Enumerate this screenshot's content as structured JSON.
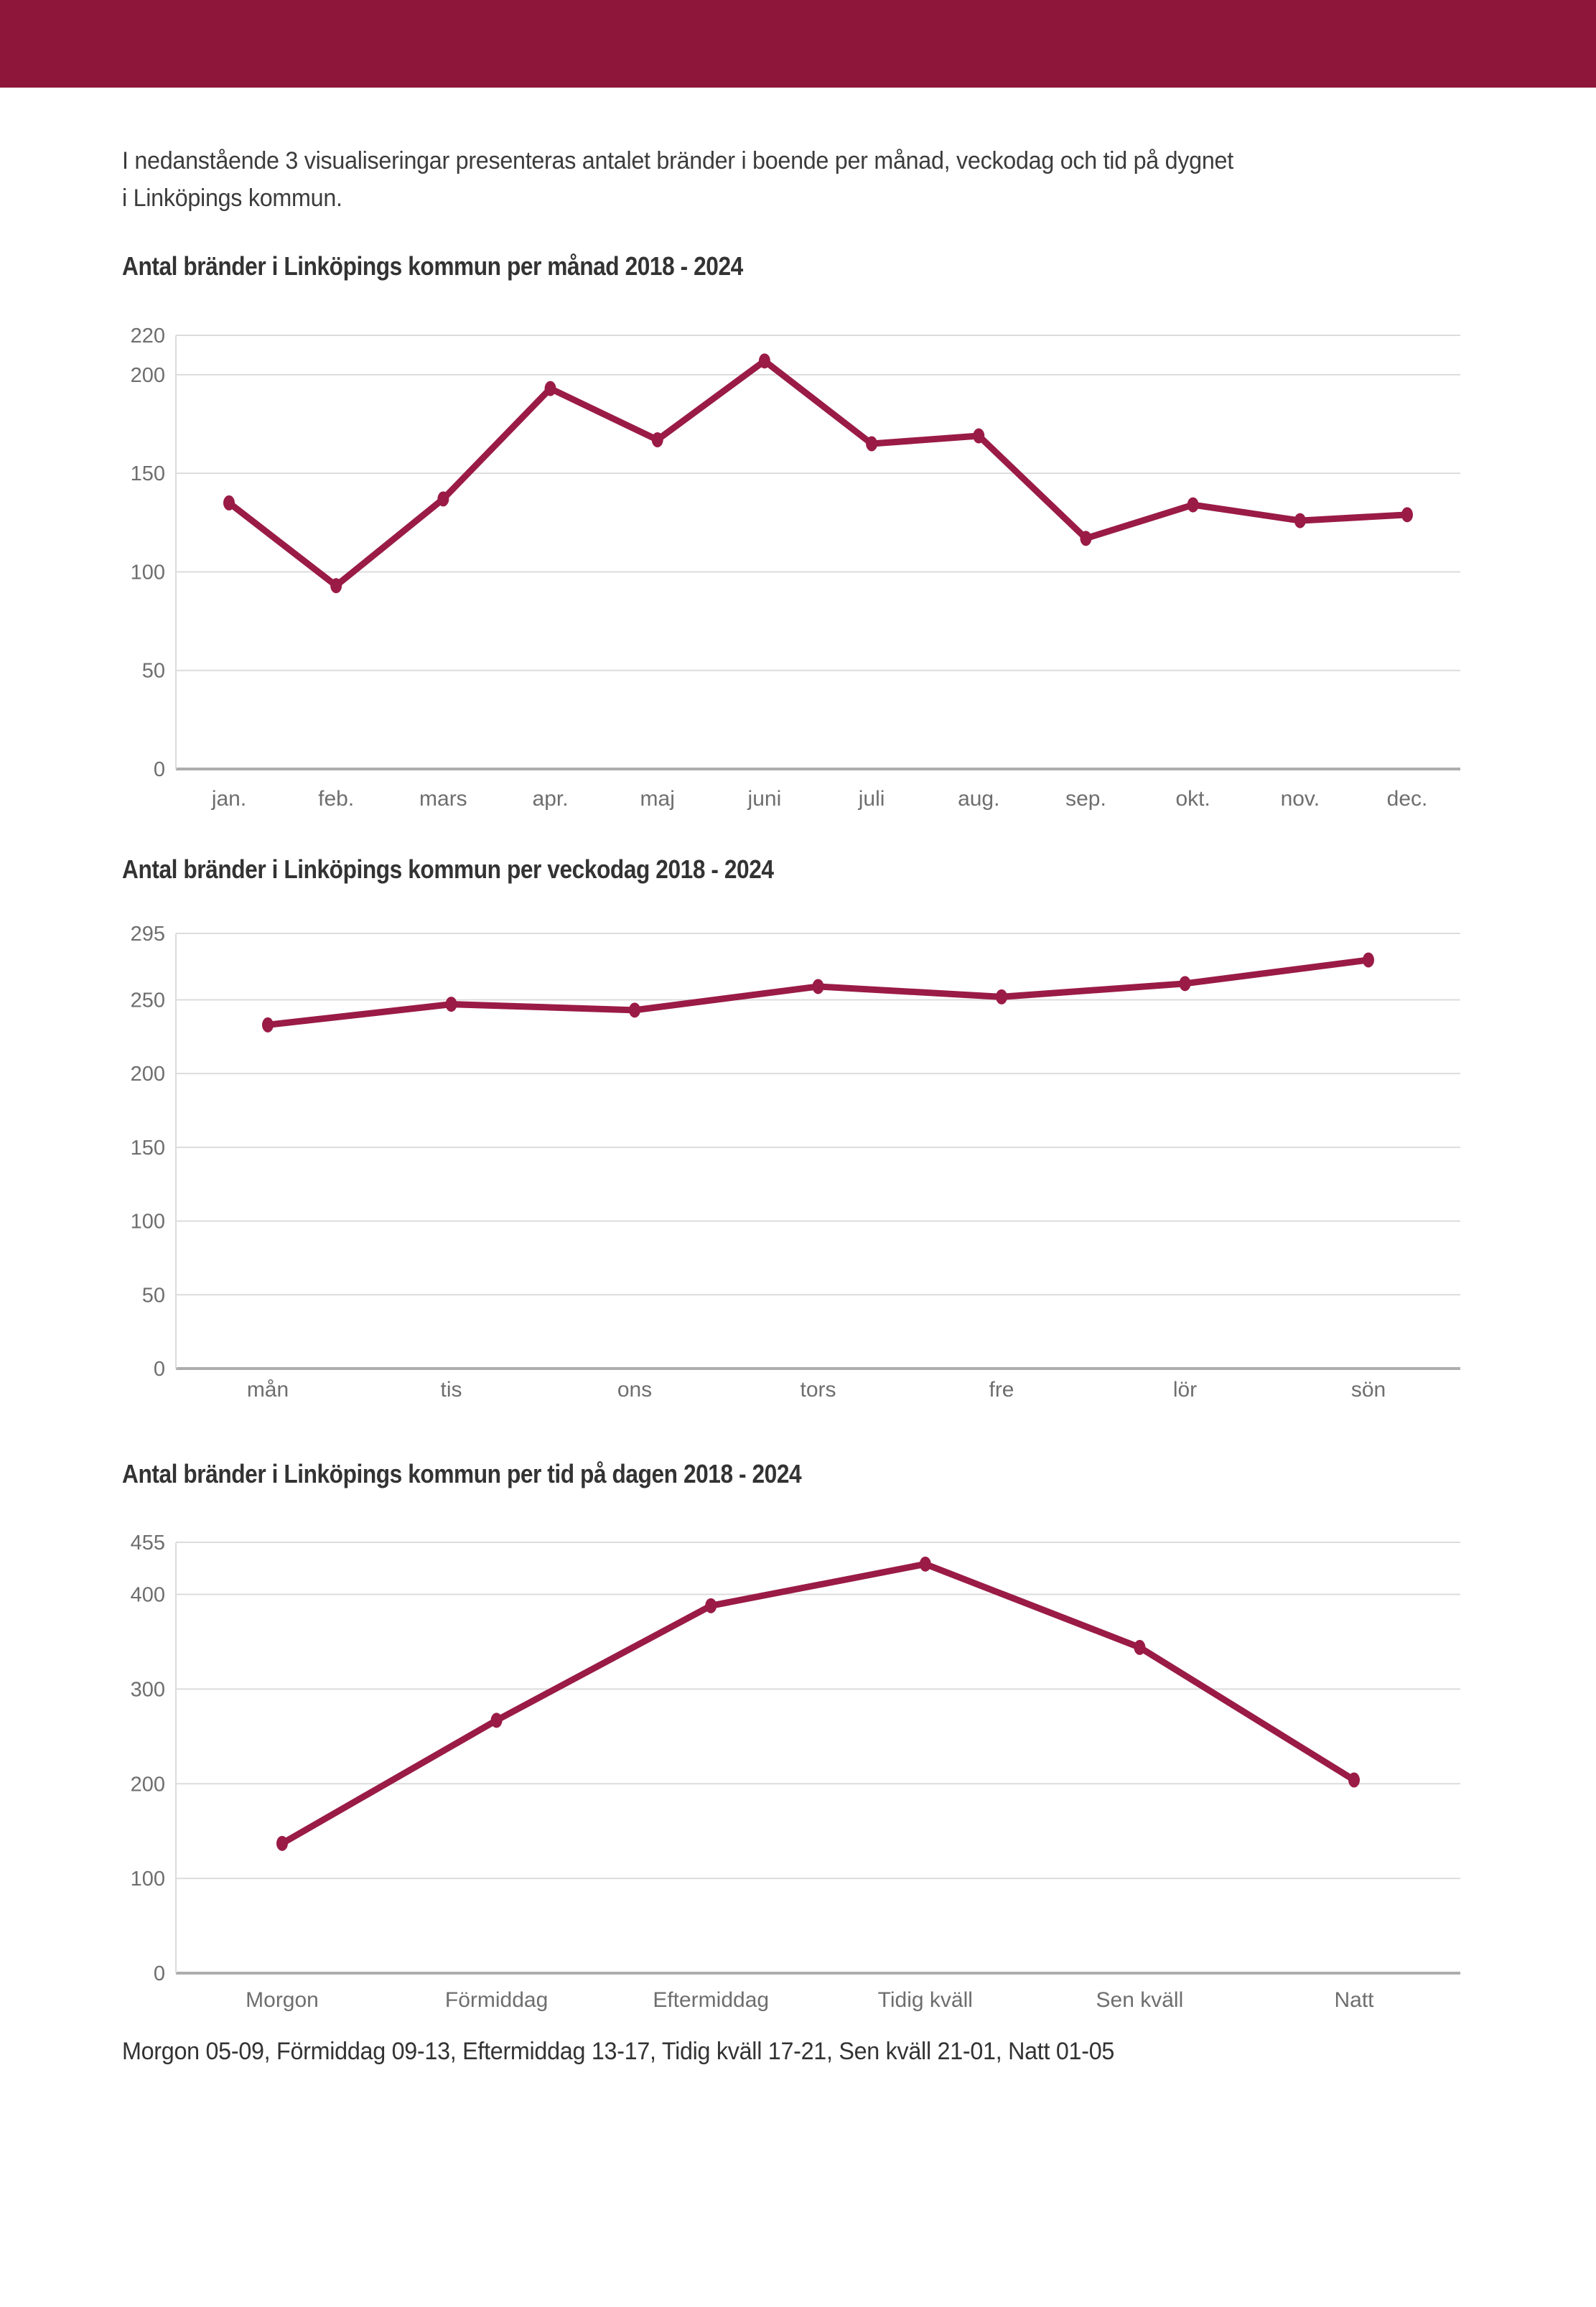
{
  "colors": {
    "header_bar": "#8E163A",
    "line": "#9A1B45",
    "grid": "#DCDCDC",
    "zero_axis": "#ADADAD",
    "tick_text": "#6E6E6E"
  },
  "intro": {
    "lines": [
      "I nedanstående 3 visualiseringar presenteras antalet bränder i boende per månad, veckodag och tid på dygnet",
      "i Linköpings kommun."
    ]
  },
  "chart_data": [
    {
      "type": "line",
      "title": "Antal bränder i Linköpings kommun per månad 2018 - 2024",
      "categories": [
        "jan.",
        "feb.",
        "mars",
        "apr.",
        "maj",
        "juni",
        "juli",
        "aug.",
        "sep.",
        "okt.",
        "nov.",
        "dec."
      ],
      "values": [
        135,
        93,
        137,
        193,
        167,
        207,
        165,
        169,
        117,
        134,
        126,
        129
      ],
      "xlabel": "",
      "ylabel": "",
      "ylim": [
        0,
        220
      ],
      "yticks": [
        0,
        50,
        100,
        150,
        200,
        220
      ],
      "grid": true,
      "legend": "none",
      "line_color": "#9A1B45"
    },
    {
      "type": "line",
      "title": "Antal bränder i Linköpings kommun per veckodag 2018 - 2024",
      "categories": [
        "mån",
        "tis",
        "ons",
        "tors",
        "fre",
        "lör",
        "sön"
      ],
      "values": [
        233,
        247,
        243,
        259,
        252,
        261,
        277
      ],
      "xlabel": "",
      "ylabel": "",
      "ylim": [
        0,
        295
      ],
      "yticks": [
        0,
        50,
        100,
        150,
        200,
        250,
        295
      ],
      "grid": true,
      "legend": "none",
      "line_color": "#9A1B45"
    },
    {
      "type": "line",
      "title": "Antal bränder i Linköpings kommun per tid på dagen 2018 - 2024",
      "categories": [
        "Morgon",
        "Förmiddag",
        "Eftermiddag",
        "Tidig kväll",
        "Sen kväll",
        "Natt"
      ],
      "values": [
        137,
        267,
        388,
        432,
        344,
        204
      ],
      "xlabel": "",
      "ylabel": "",
      "ylim": [
        0,
        455
      ],
      "yticks": [
        0,
        100,
        200,
        300,
        400,
        455
      ],
      "grid": true,
      "legend": "none",
      "line_color": "#9A1B45"
    }
  ],
  "footer": {
    "text": "Morgon 05-09, Förmiddag 09-13, Eftermiddag 13-17, Tidig kväll 17-21, Sen kväll 21-01, Natt 01-05"
  }
}
